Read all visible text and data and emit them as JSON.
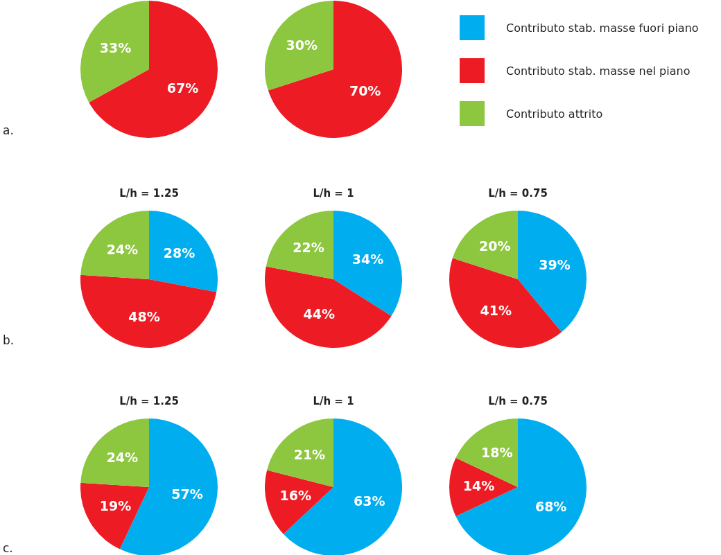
{
  "chart_data": [
    {
      "type": "pie",
      "categories": [
        null,
        null,
        null
      ],
      "values": [
        null,
        67,
        33
      ],
      "colors": [
        "#00aeef",
        "#ed1c24",
        "#8dc63f"
      ],
      "value_labels": [
        null,
        "67%",
        "33%"
      ],
      "annotations": [
        "a."
      ]
    },
    {
      "type": "pie",
      "categories": [
        "Contributo stab. masse fuori piano",
        "Contributo stab. masse nel piano",
        "Contributo attrito"
      ],
      "values": [
        null,
        70,
        30
      ],
      "colors": [
        "#00aeef",
        "#ed1c24",
        "#8dc63f"
      ],
      "value_labels": [
        null,
        "70%",
        "30%"
      ],
      "legend": "right"
    },
    {
      "type": "pie",
      "title": "L/h = 1.25",
      "categories": [
        null,
        null,
        null
      ],
      "values": [
        28,
        48,
        24
      ],
      "colors": [
        "#00aeef",
        "#ed1c24",
        "#8dc63f"
      ],
      "value_labels": [
        "28%",
        "48%",
        "24%"
      ],
      "annotations": [
        "b."
      ]
    },
    {
      "type": "pie",
      "title": "L/h = 1",
      "categories": [
        null,
        null,
        null
      ],
      "values": [
        34,
        44,
        22
      ],
      "colors": [
        "#00aeef",
        "#ed1c24",
        "#8dc63f"
      ],
      "value_labels": [
        "34%",
        "44%",
        "22%"
      ]
    },
    {
      "type": "pie",
      "title": "L/h = 0.75",
      "categories": [
        null,
        null,
        null
      ],
      "values": [
        39,
        41,
        20
      ],
      "colors": [
        "#00aeef",
        "#ed1c24",
        "#8dc63f"
      ],
      "value_labels": [
        "39%",
        "41%",
        "20%"
      ]
    },
    {
      "type": "pie",
      "title": "L/h = 1.25",
      "categories": [
        null,
        null,
        null
      ],
      "values": [
        57,
        19,
        24
      ],
      "colors": [
        "#00aeef",
        "#ed1c24",
        "#8dc63f"
      ],
      "value_labels": [
        "57%",
        "19%",
        "24%"
      ],
      "annotations": [
        "c."
      ]
    },
    {
      "type": "pie",
      "title": "L/h = 1",
      "categories": [
        null,
        null,
        null
      ],
      "values": [
        63,
        16,
        21
      ],
      "colors": [
        "#00aeef",
        "#ed1c24",
        "#8dc63f"
      ],
      "value_labels": [
        "63%",
        "16%",
        "21%"
      ]
    },
    {
      "type": "pie",
      "title": "L/h = 0.75",
      "categories": [
        null,
        null,
        null
      ],
      "values": [
        68,
        14,
        18
      ],
      "colors": [
        "#00aeef",
        "#ed1c24",
        "#8dc63f"
      ],
      "value_labels": [
        "68%",
        "14%",
        "18%"
      ]
    }
  ]
}
